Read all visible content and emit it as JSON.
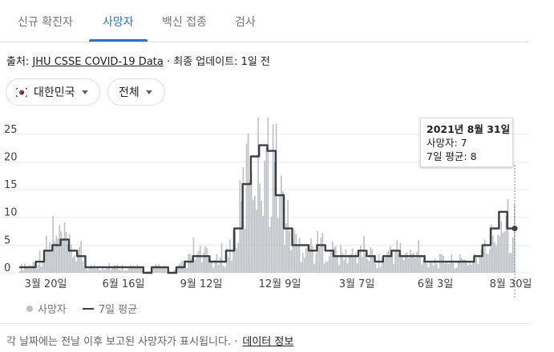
{
  "tabs": [
    {
      "label": "신규 확진자",
      "active": false
    },
    {
      "label": "사망자",
      "active": true
    },
    {
      "label": "백신 접종",
      "active": false
    },
    {
      "label": "검사",
      "active": false
    }
  ],
  "source": {
    "prefix": "출처: ",
    "link": "JHU CSSE COVID-19 Data",
    "suffix": " · 최종 업데이트: 1일 전"
  },
  "filters": {
    "region": "대한민국",
    "range": "전체"
  },
  "tooltip": {
    "date": "2021년 8월 31일",
    "deaths": "사망자: 7",
    "avg": "7일 평균: 8"
  },
  "legend": {
    "deaths": "사망자",
    "avg": "7일 평균"
  },
  "footer": {
    "note": "각 날짜에는 전날 이후 보고된 사망자가 표시됩니다.  ·",
    "link": "데이터 정보"
  },
  "colors": {
    "accent": "#1a73e8",
    "bars": "#bdc1c6",
    "avg_line": "#3c4043"
  },
  "chart_data": {
    "type": "bar",
    "title": "",
    "xlabel": "",
    "ylabel": "",
    "ylim": [
      0,
      28
    ],
    "y_ticks": [
      0,
      5,
      10,
      15,
      20,
      25
    ],
    "x_tick_labels": [
      "3월 20일",
      "6월 16일",
      "9월 12일",
      "12월 9일",
      "3월 7일",
      "6월 3일",
      "8월 30일"
    ],
    "start_date": "2020-03-05",
    "end_date": "2021-08-31",
    "series": [
      {
        "name": "사망자",
        "type": "bar"
      },
      {
        "name": "7일 평균",
        "type": "line",
        "values_by_segment": [
          [
            1,
            1
          ],
          [
            2,
            1
          ],
          [
            3,
            2
          ],
          [
            4,
            4
          ],
          [
            5,
            5
          ],
          [
            6,
            6
          ],
          [
            7,
            4
          ],
          [
            8,
            3
          ],
          [
            9,
            1
          ],
          [
            10,
            1
          ],
          [
            11,
            1
          ],
          [
            12,
            1
          ],
          [
            13,
            1
          ],
          [
            14,
            1
          ],
          [
            15,
            1
          ],
          [
            16,
            0
          ],
          [
            17,
            1
          ],
          [
            18,
            1
          ],
          [
            19,
            0
          ],
          [
            20,
            1
          ],
          [
            21,
            2
          ],
          [
            22,
            3
          ],
          [
            23,
            3
          ],
          [
            24,
            2
          ],
          [
            25,
            2
          ],
          [
            26,
            4
          ],
          [
            27,
            8
          ],
          [
            28,
            16
          ],
          [
            29,
            21
          ],
          [
            30,
            23
          ],
          [
            31,
            22
          ],
          [
            32,
            14
          ],
          [
            33,
            8
          ],
          [
            34,
            5
          ],
          [
            35,
            5
          ],
          [
            36,
            4
          ],
          [
            37,
            5
          ],
          [
            38,
            4
          ],
          [
            39,
            3
          ],
          [
            40,
            3
          ],
          [
            41,
            3
          ],
          [
            42,
            4
          ],
          [
            43,
            3
          ],
          [
            44,
            2
          ],
          [
            45,
            3
          ],
          [
            46,
            4
          ],
          [
            47,
            3
          ],
          [
            48,
            3
          ],
          [
            49,
            3
          ],
          [
            50,
            2
          ],
          [
            51,
            2
          ],
          [
            52,
            2
          ],
          [
            53,
            2
          ],
          [
            54,
            2
          ],
          [
            55,
            2
          ],
          [
            56,
            3
          ],
          [
            57,
            5
          ],
          [
            58,
            8
          ],
          [
            59,
            11
          ],
          [
            60,
            8
          ]
        ]
      }
    ],
    "highlight": {
      "date": "2021-08-31",
      "deaths": 7,
      "avg": 8
    }
  }
}
